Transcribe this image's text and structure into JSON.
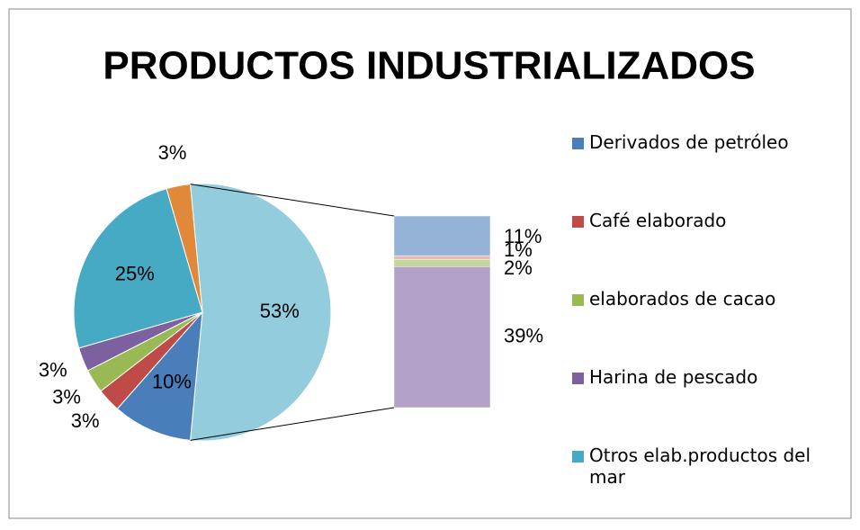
{
  "chart_data": {
    "type": "bar-of-pie",
    "title": "PRODUCTOS INDUSTRIALIZADOS",
    "categories": [
      "Derivados de petróleo",
      "Café elaborado",
      "elaborados de cacao",
      "Harina de pescado",
      "Otros elab.productos del mar",
      null
    ],
    "values": [
      10,
      3,
      3,
      3,
      25,
      3
    ],
    "value_labels": [
      "10%",
      "3%",
      "3%",
      "3%",
      "25%",
      "3%"
    ],
    "colors": [
      "#4a7ebb",
      "#be4b48",
      "#98b954",
      "#7d60a0",
      "#46aac5",
      "#e0893a"
    ],
    "other": {
      "value": 53,
      "value_label": "53%",
      "color": "#93cddd"
    },
    "breakdown": {
      "categories": [
        null,
        null,
        null,
        null
      ],
      "values": [
        11,
        1,
        2,
        39
      ],
      "value_labels": [
        "11%",
        "1%",
        "2%",
        "39%"
      ],
      "colors": [
        "#95b3d7",
        "#e6b9b8",
        "#c3d69b",
        "#b3a2c7"
      ]
    },
    "legend": "right"
  }
}
